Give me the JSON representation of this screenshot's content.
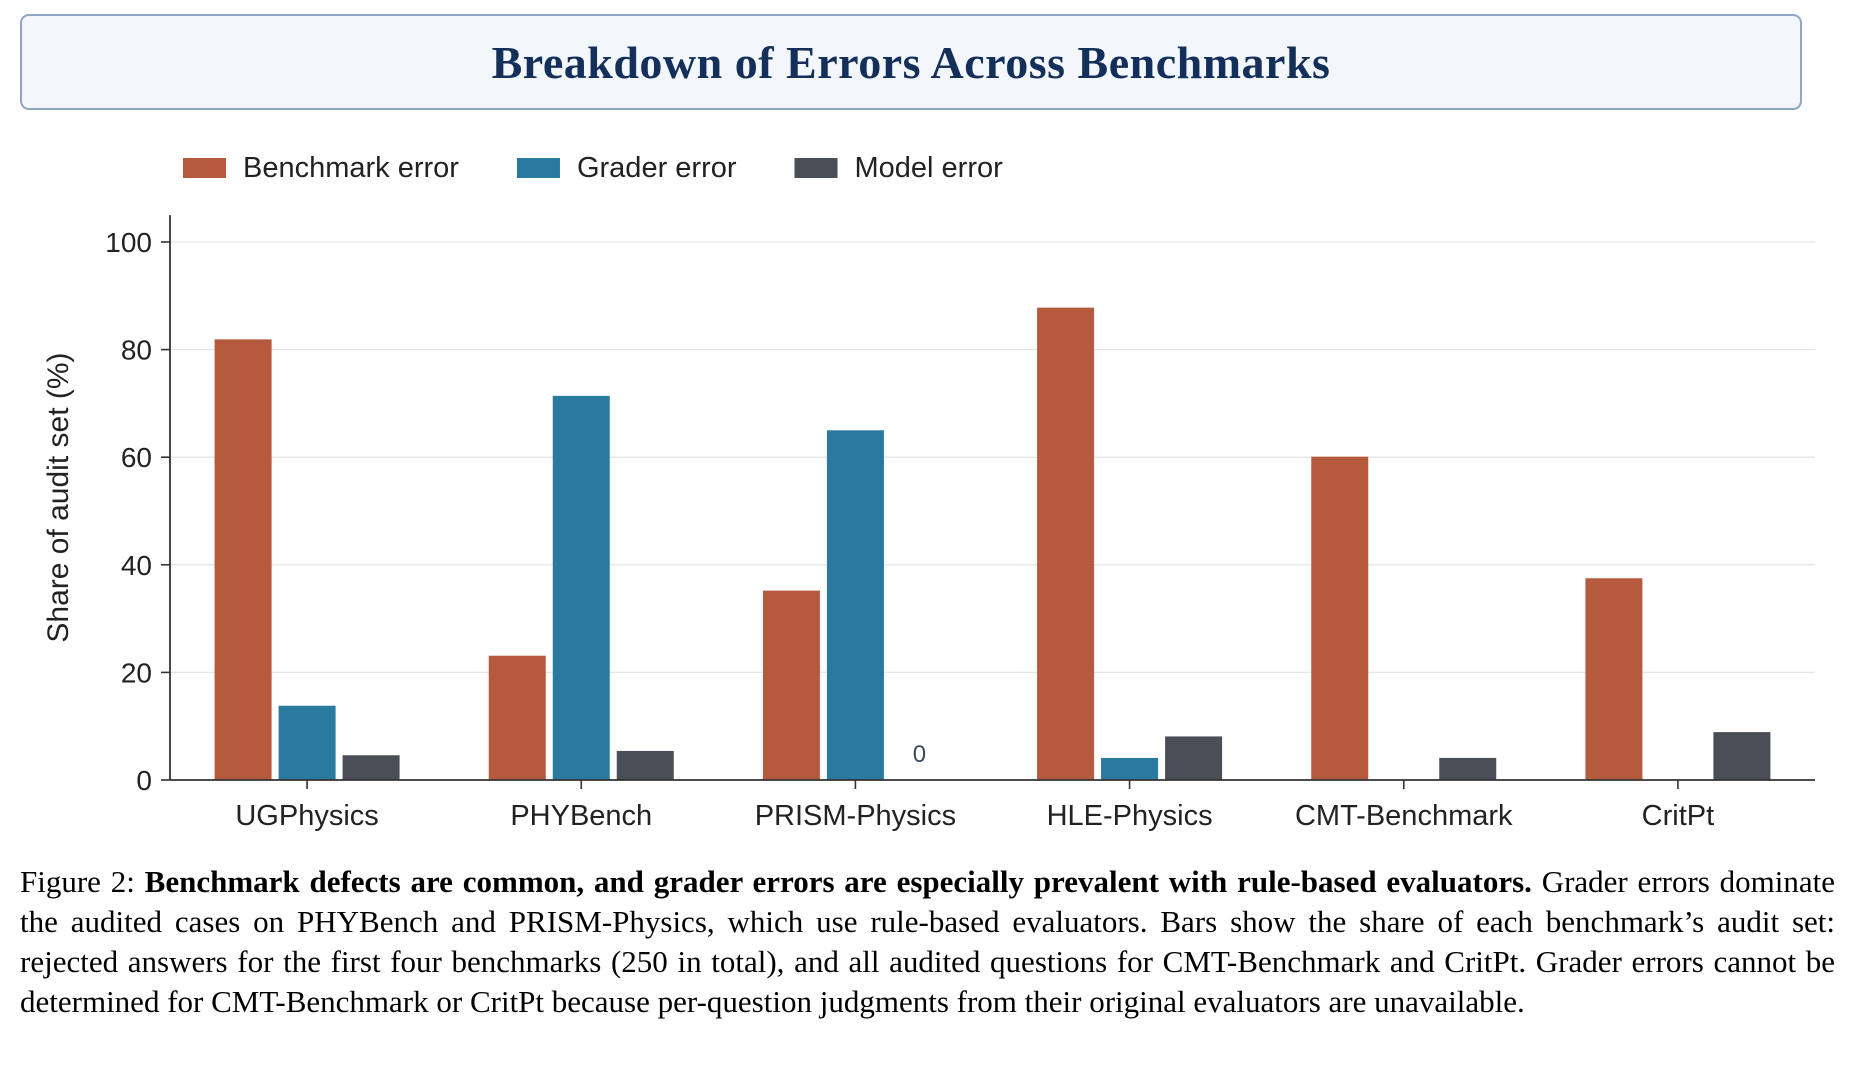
{
  "header": {
    "title": "Breakdown of Errors Across Benchmarks"
  },
  "chart_data": {
    "type": "bar",
    "categories": [
      "UGPhysics",
      "PHYBench",
      "PRISM-Physics",
      "HLE-Physics",
      "CMT-Benchmark",
      "CritPt"
    ],
    "series": [
      {
        "name": "Benchmark error",
        "color": "#b55a3c",
        "values": [
          81.9,
          23.1,
          35.2,
          87.8,
          60.1,
          37.5
        ]
      },
      {
        "name": "Grader error",
        "color": "#2a7a9f",
        "values": [
          13.8,
          71.4,
          65.0,
          4.1,
          null,
          null
        ]
      },
      {
        "name": "Model error",
        "color": "#4a4f57",
        "values": [
          4.6,
          5.4,
          0,
          8.1,
          4.1,
          8.9
        ]
      }
    ],
    "annotations": [
      {
        "category": "PRISM-Physics",
        "series": "Model error",
        "text": "0"
      }
    ],
    "xlabel": "",
    "ylabel": "Share of audit set (%)",
    "ylim": [
      0,
      105
    ],
    "yticks": [
      0,
      20,
      40,
      60,
      80,
      100
    ],
    "grid": "horizontal",
    "legend": "top-left"
  },
  "caption": {
    "prefix": "Figure 2: ",
    "bold": "Benchmark defects are common, and grader errors are especially prevalent with rule-based evaluators.",
    "text": " Grader errors dominate the audited cases on PHYBench and PRISM-Physics, which use rule-based evaluators. Bars show the share of each benchmark’s audit set: rejected answers for the first four benchmarks (250 in total), and all audited questions for CMT-Benchmark and CritPt. Grader errors cannot be determined for CMT-Benchmark or CritPt because per-question judgments from their original evaluators are unavailable."
  }
}
